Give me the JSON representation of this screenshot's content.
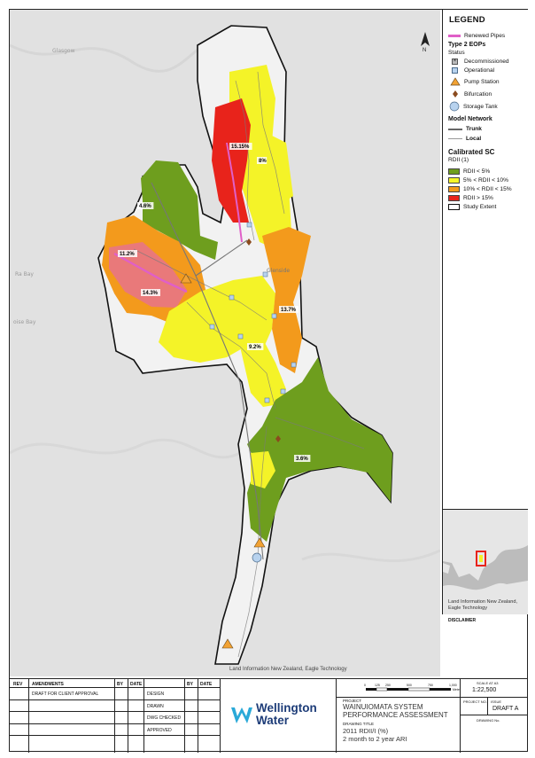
{
  "map": {
    "labels": {
      "glenside": "Glenside",
      "glasgow": "Glasgow",
      "ra_bay": "Ra Bay",
      "oise_bay": "oise Bay"
    },
    "catchments": [
      {
        "value": "15.15%",
        "class": "RDII > 15%"
      },
      {
        "value": "8%",
        "class": "5% < RDII < 10%"
      },
      {
        "value": "4.6%",
        "class": "RDII < 5%"
      },
      {
        "value": "11.2%",
        "class": "10% < RDII < 15%"
      },
      {
        "value": "14.3%",
        "class": "10% < RDII < 15%"
      },
      {
        "value": "13.7%",
        "class": "10% < RDII < 15%"
      },
      {
        "value": "9.2%",
        "class": "5% < RDII < 10%"
      },
      {
        "value": "3.6%",
        "class": "RDII < 5%"
      }
    ],
    "credit": "Land Information New Zealand, Eagle Technology"
  },
  "legend": {
    "title": "LEGEND",
    "renewed_pipes": "Renewed Pipes",
    "eop_heading": "Type 2 EOPs",
    "status_label": "Status",
    "decommissioned": "Decommissioned",
    "operational": "Operational",
    "pump_station": "Pump Station",
    "bifurcation": "Bifurcation",
    "storage_tank": "Storage Tank",
    "model_network": "Model Network",
    "trunk": "Trunk",
    "local": "Local",
    "calibrated": "Calibrated SC",
    "rdii_label": "RDII (1)",
    "classes": [
      "RDII < 5%",
      "5% < RDII < 10%",
      "10% < RDII < 15%",
      "RDII > 15%"
    ],
    "study_extent": "Study Extent",
    "colors": {
      "green": "#6e9e1e",
      "yellow": "#f5f52a",
      "orange": "#f39a1c",
      "red": "#e8231b",
      "pink": "#e05fc8"
    }
  },
  "inset": {
    "credit": "Land Information New Zealand, Eagle Technology",
    "disclaimer": "DISCLAIMER"
  },
  "title_block": {
    "rev": "REV",
    "amendments": "AMENDMENTS",
    "by": "BY",
    "date": "DATE",
    "by2": "BY",
    "date2": "DATE",
    "draft_note": "DRAFT FOR CLIENT APPROVAL",
    "design": "DESIGN",
    "drawn": "DRAWN",
    "dwg_checked": "DWG CHECKED",
    "approved": "APPROVED",
    "logo_line1": "Wellington",
    "logo_line2": "Water",
    "project_label": "PROJECT",
    "project_name_1": "WAINUIOMATA SYSTEM",
    "project_name_2": "PERFORMANCE ASSESSMENT",
    "drawing_title_label": "DRAWING TITLE",
    "drawing_title_1": "2011 RDII/I (%)",
    "drawing_title_2": "2 month to 2 year ARI",
    "scale_label": "SCALE AT A3",
    "scale_value": "1:22,500",
    "project_no_label": "PROJECT NO.",
    "issue_label": "ISSUE",
    "issue_value": "DRAFT A",
    "drawing_no_label": "DRAWING No.",
    "scale_ticks": [
      "0",
      "125",
      "250",
      "500",
      "750",
      "1,000"
    ],
    "scale_unit": "Meters"
  }
}
